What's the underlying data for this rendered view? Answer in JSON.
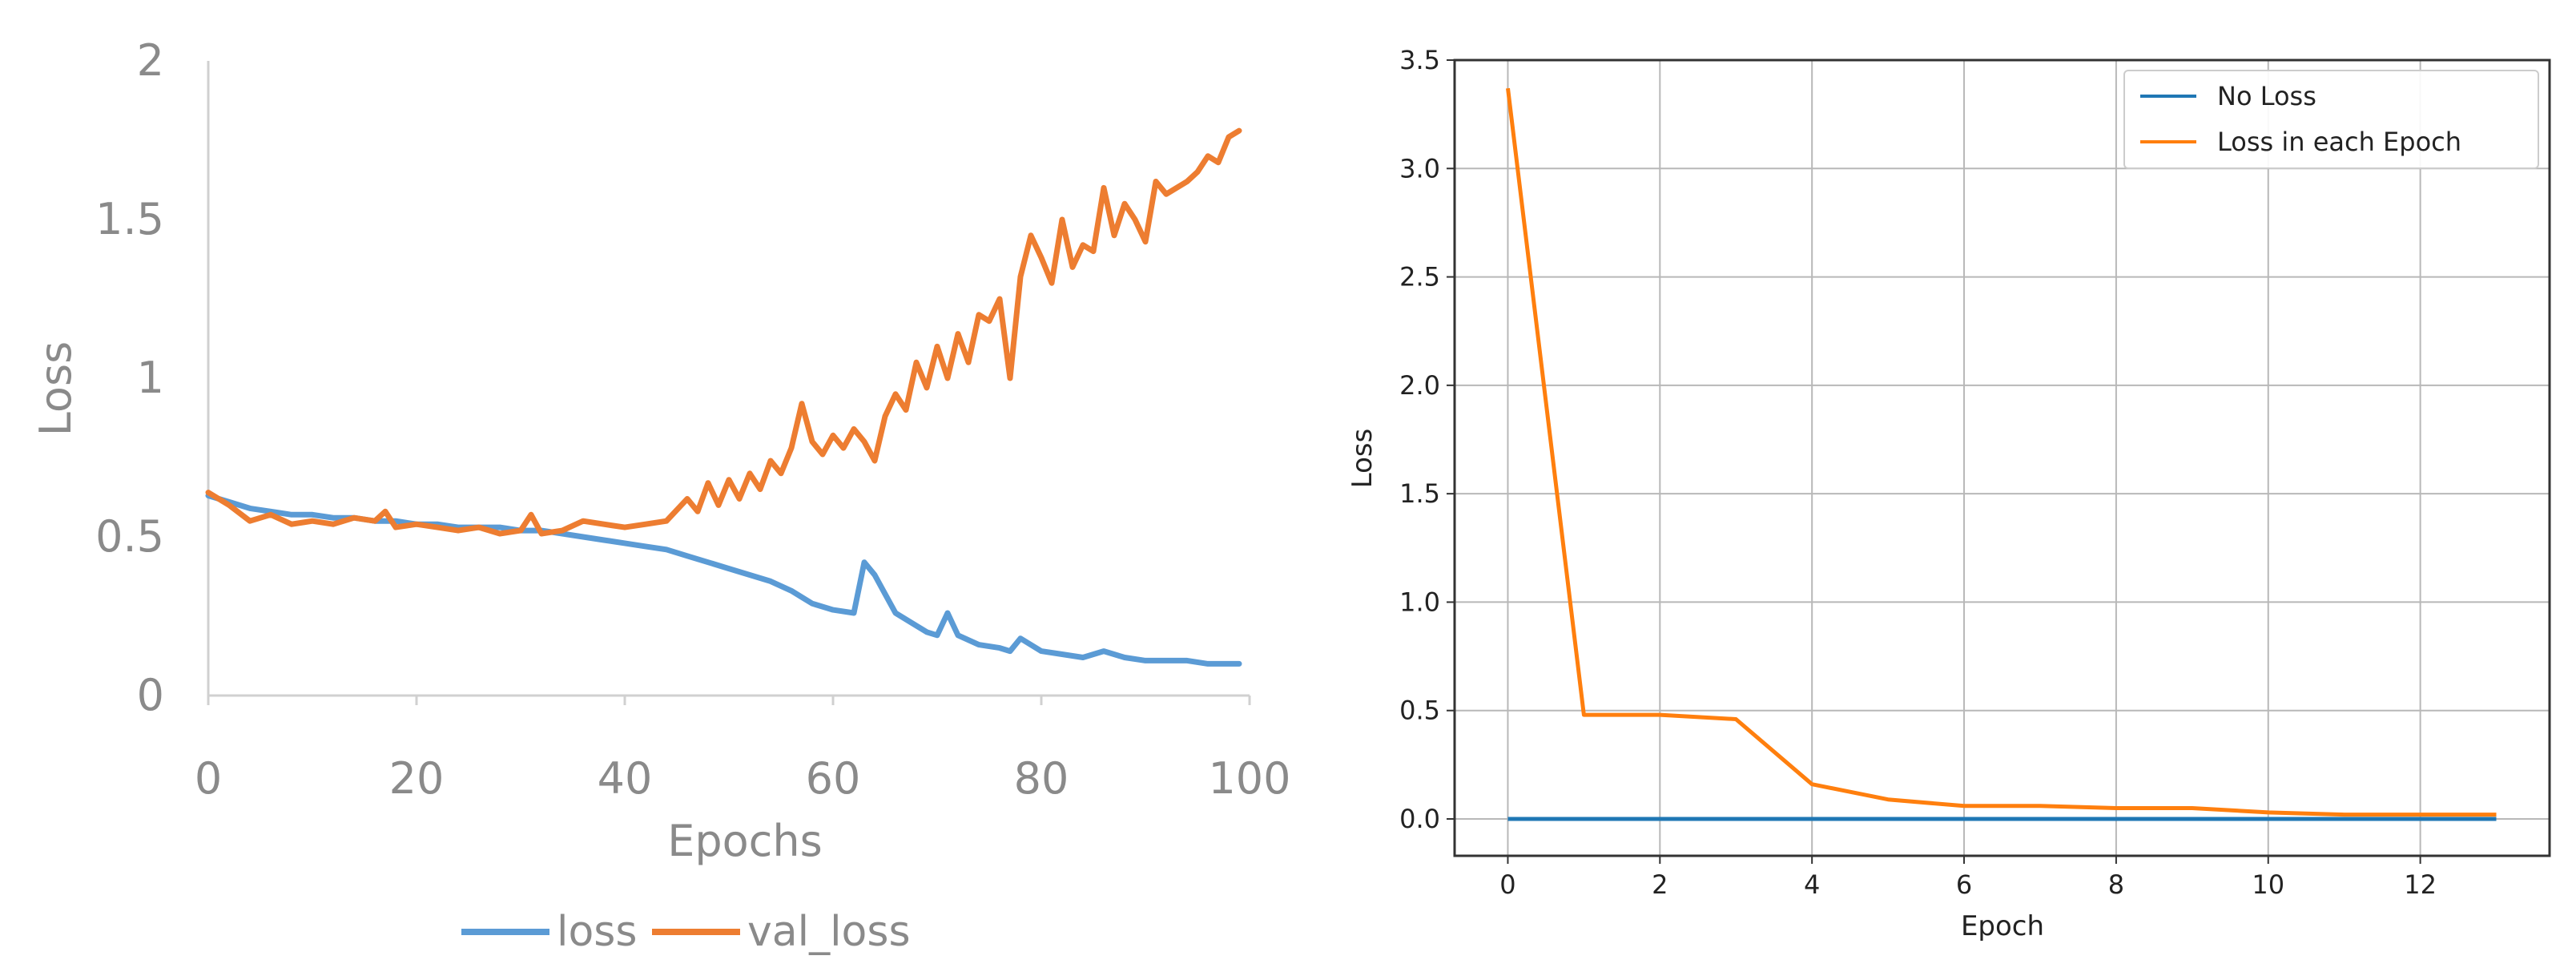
{
  "chart_data": [
    {
      "type": "line",
      "title": "",
      "xlabel": "Epochs",
      "ylabel": "Loss",
      "xlim": [
        0,
        100
      ],
      "ylim": [
        0,
        2
      ],
      "x_ticks": [
        "0",
        "20",
        "40",
        "60",
        "80",
        "100"
      ],
      "y_ticks": [
        "0",
        "0.5",
        "1",
        "1.5",
        "2"
      ],
      "x_tick_values": [
        0,
        20,
        40,
        60,
        80,
        100
      ],
      "y_tick_values": [
        0,
        0.5,
        1,
        1.5,
        2
      ],
      "grid": false,
      "legend_position": "bottom-center",
      "series": [
        {
          "name": "loss",
          "color": "#5b9bd5",
          "x": [
            0,
            2,
            4,
            6,
            8,
            10,
            12,
            14,
            16,
            18,
            20,
            22,
            24,
            26,
            28,
            30,
            32,
            34,
            36,
            38,
            40,
            42,
            44,
            46,
            48,
            50,
            52,
            54,
            56,
            57,
            58,
            60,
            62,
            63,
            64,
            65,
            66,
            68,
            69,
            70,
            71,
            72,
            74,
            76,
            77,
            78,
            80,
            82,
            84,
            86,
            88,
            90,
            92,
            94,
            96,
            98,
            99
          ],
          "y": [
            0.63,
            0.61,
            0.59,
            0.58,
            0.57,
            0.57,
            0.56,
            0.56,
            0.55,
            0.55,
            0.54,
            0.54,
            0.53,
            0.53,
            0.53,
            0.52,
            0.52,
            0.51,
            0.5,
            0.49,
            0.48,
            0.47,
            0.46,
            0.44,
            0.42,
            0.4,
            0.38,
            0.36,
            0.33,
            0.31,
            0.29,
            0.27,
            0.26,
            0.42,
            0.38,
            0.32,
            0.26,
            0.22,
            0.2,
            0.19,
            0.26,
            0.19,
            0.16,
            0.15,
            0.14,
            0.18,
            0.14,
            0.13,
            0.12,
            0.14,
            0.12,
            0.11,
            0.11,
            0.11,
            0.1,
            0.1,
            0.1
          ]
        },
        {
          "name": "val_loss",
          "color": "#ed7d31",
          "x": [
            0,
            2,
            4,
            6,
            8,
            10,
            12,
            14,
            16,
            17,
            18,
            20,
            22,
            24,
            26,
            28,
            30,
            31,
            32,
            34,
            36,
            38,
            40,
            42,
            44,
            46,
            47,
            48,
            49,
            50,
            51,
            52,
            53,
            54,
            55,
            56,
            57,
            58,
            59,
            60,
            61,
            62,
            63,
            64,
            65,
            66,
            67,
            68,
            69,
            70,
            71,
            72,
            73,
            74,
            75,
            76,
            77,
            78,
            79,
            80,
            81,
            82,
            83,
            84,
            85,
            86,
            87,
            88,
            89,
            90,
            91,
            92,
            93,
            94,
            95,
            96,
            97,
            98,
            99
          ],
          "y": [
            0.64,
            0.6,
            0.55,
            0.57,
            0.54,
            0.55,
            0.54,
            0.56,
            0.55,
            0.58,
            0.53,
            0.54,
            0.53,
            0.52,
            0.53,
            0.51,
            0.52,
            0.57,
            0.51,
            0.52,
            0.55,
            0.54,
            0.53,
            0.54,
            0.55,
            0.62,
            0.58,
            0.67,
            0.6,
            0.68,
            0.62,
            0.7,
            0.65,
            0.74,
            0.7,
            0.78,
            0.92,
            0.8,
            0.76,
            0.82,
            0.78,
            0.84,
            0.8,
            0.74,
            0.88,
            0.95,
            0.9,
            1.05,
            0.97,
            1.1,
            1.0,
            1.14,
            1.05,
            1.2,
            1.18,
            1.25,
            1.0,
            1.32,
            1.45,
            1.38,
            1.3,
            1.5,
            1.35,
            1.42,
            1.4,
            1.6,
            1.45,
            1.55,
            1.5,
            1.43,
            1.62,
            1.58,
            1.6,
            1.62,
            1.65,
            1.7,
            1.68,
            1.76,
            1.78
          ]
        }
      ]
    },
    {
      "type": "line",
      "title": "",
      "xlabel": "Epoch",
      "ylabel": "Loss",
      "xlim": [
        -0.7,
        13.7
      ],
      "ylim": [
        -0.17,
        3.5
      ],
      "x_ticks": [
        "0",
        "2",
        "4",
        "6",
        "8",
        "10",
        "12"
      ],
      "y_ticks": [
        "0.0",
        "0.5",
        "1.0",
        "1.5",
        "2.0",
        "2.5",
        "3.0",
        "3.5"
      ],
      "x_tick_values": [
        0,
        2,
        4,
        6,
        8,
        10,
        12
      ],
      "y_tick_values": [
        0,
        0.5,
        1.0,
        1.5,
        2.0,
        2.5,
        3.0,
        3.5
      ],
      "grid": true,
      "legend_position": "top-right",
      "series": [
        {
          "name": "No Loss",
          "color": "#1f77b4",
          "x": [
            0,
            1,
            2,
            3,
            4,
            5,
            6,
            7,
            8,
            9,
            10,
            11,
            12,
            13
          ],
          "y": [
            0,
            0,
            0,
            0,
            0,
            0,
            0,
            0,
            0,
            0,
            0,
            0,
            0,
            0
          ]
        },
        {
          "name": "Loss in each Epoch",
          "color": "#ff7f0e",
          "x": [
            0,
            1,
            2,
            3,
            4,
            5,
            6,
            7,
            8,
            9,
            10,
            11,
            12,
            13
          ],
          "y": [
            3.37,
            0.48,
            0.48,
            0.46,
            0.16,
            0.09,
            0.06,
            0.06,
            0.05,
            0.05,
            0.03,
            0.02,
            0.02,
            0.02
          ]
        }
      ]
    }
  ]
}
